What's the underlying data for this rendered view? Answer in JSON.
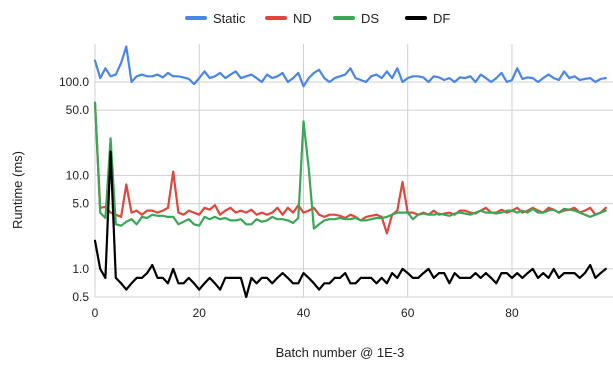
{
  "chart_data": {
    "type": "line",
    "title": "",
    "xlabel": "Batch number @ 1E-3",
    "ylabel": "Runtime (ms)",
    "y_scale": "log",
    "ylim": [
      0.5,
      200
    ],
    "xlim": [
      0,
      99
    ],
    "y_ticks": [
      {
        "value": 0.5,
        "label": "0.5"
      },
      {
        "value": 1.0,
        "label": "1.0"
      },
      {
        "value": 5.0,
        "label": "5.0"
      },
      {
        "value": 10.0,
        "label": "10.0"
      },
      {
        "value": 50.0,
        "label": "50.0"
      },
      {
        "value": 100.0,
        "label": "100.0"
      }
    ],
    "x_ticks": [
      {
        "value": 0,
        "label": "0"
      },
      {
        "value": 20,
        "label": "20"
      },
      {
        "value": 40,
        "label": "40"
      },
      {
        "value": 60,
        "label": "60"
      },
      {
        "value": 80,
        "label": "80"
      }
    ],
    "grid": true,
    "legend_position": "top",
    "series": [
      {
        "name": "Static",
        "color": "#4a86e8",
        "values": [
          170,
          110,
          140,
          115,
          120,
          160,
          240,
          100,
          115,
          120,
          115,
          115,
          120,
          112,
          125,
          115,
          115,
          112,
          108,
          95,
          110,
          130,
          110,
          115,
          125,
          110,
          120,
          130,
          110,
          115,
          120,
          110,
          100,
          120,
          110,
          115,
          125,
          100,
          110,
          125,
          90,
          110,
          125,
          135,
          110,
          100,
          110,
          115,
          120,
          140,
          110,
          105,
          100,
          115,
          120,
          110,
          130,
          110,
          140,
          100,
          110,
          115,
          115,
          112,
          100,
          115,
          112,
          105,
          110,
          100,
          112,
          110,
          115,
          100,
          120,
          110,
          100,
          110,
          125,
          100,
          105,
          140,
          108,
          112,
          110,
          100,
          110,
          120,
          110,
          105,
          130,
          110,
          115,
          105,
          108,
          110,
          100,
          108,
          110
        ]
      },
      {
        "name": "ND",
        "color": "#e0463c",
        "values": [
          60,
          4.5,
          4.6,
          4.0,
          3.8,
          3.6,
          8.0,
          4.0,
          4.2,
          3.8,
          4.2,
          4.2,
          4.0,
          4.2,
          4.5,
          11.0,
          4.0,
          3.8,
          4.2,
          4.0,
          3.8,
          4.5,
          4.3,
          4.8,
          3.8,
          4.2,
          4.5,
          4.0,
          4.2,
          4.0,
          4.3,
          3.8,
          4.0,
          3.8,
          4.0,
          4.5,
          3.8,
          4.5,
          4.0,
          4.8,
          4.0,
          4.2,
          4.5,
          3.8,
          3.6,
          3.8,
          3.8,
          3.7,
          3.5,
          3.8,
          3.6,
          3.3,
          3.6,
          3.7,
          3.8,
          3.6,
          2.4,
          3.8,
          4.2,
          8.5,
          4.0,
          4.0,
          3.8,
          4.0,
          3.8,
          4.2,
          3.8,
          3.9,
          4.0,
          3.8,
          4.2,
          4.2,
          4.0,
          3.9,
          4.2,
          4.5,
          4.0,
          4.0,
          4.3,
          4.0,
          4.2,
          4.5,
          4.0,
          4.2,
          4.5,
          4.2,
          4.0,
          4.5,
          4.3,
          4.0,
          4.2,
          4.3,
          4.5,
          4.0,
          4.2,
          4.5,
          3.8,
          4.0,
          4.5
        ]
      },
      {
        "name": "DS",
        "color": "#3aa757",
        "values": [
          60,
          4.0,
          3.5,
          25.0,
          3.0,
          2.9,
          3.2,
          3.4,
          3.0,
          3.6,
          3.5,
          3.8,
          3.7,
          3.7,
          3.6,
          3.6,
          3.0,
          3.2,
          3.4,
          3.0,
          2.9,
          3.6,
          3.4,
          3.6,
          3.4,
          3.5,
          3.3,
          3.3,
          3.4,
          3.0,
          3.0,
          3.4,
          3.2,
          3.3,
          3.6,
          3.4,
          3.4,
          3.3,
          3.1,
          3.5,
          38.0,
          12.0,
          2.7,
          3.0,
          3.3,
          3.4,
          3.4,
          3.5,
          3.4,
          3.4,
          3.5,
          3.3,
          3.3,
          3.4,
          3.5,
          3.5,
          3.6,
          3.8,
          4.0,
          4.0,
          4.0,
          3.4,
          3.8,
          3.9,
          3.8,
          3.8,
          3.9,
          3.8,
          3.7,
          3.9,
          4.0,
          3.9,
          3.8,
          4.0,
          4.2,
          4.0,
          4.0,
          3.9,
          4.0,
          4.2,
          4.2,
          4.0,
          4.2,
          4.0,
          4.4,
          4.0,
          4.0,
          4.2,
          4.3,
          4.0,
          4.4,
          4.3,
          4.2,
          4.0,
          3.8,
          3.6,
          3.8,
          4.0,
          4.2
        ]
      },
      {
        "name": "DF",
        "color": "#000000",
        "values": [
          2.0,
          1.0,
          0.8,
          18.0,
          0.8,
          0.7,
          0.6,
          0.7,
          0.8,
          0.8,
          0.9,
          1.1,
          0.8,
          0.8,
          0.7,
          1.0,
          0.7,
          0.7,
          0.8,
          0.7,
          0.6,
          0.7,
          0.8,
          0.7,
          0.6,
          0.8,
          0.8,
          0.8,
          0.8,
          0.5,
          0.8,
          0.7,
          0.8,
          0.8,
          0.7,
          0.8,
          0.9,
          0.8,
          0.7,
          0.7,
          0.9,
          0.8,
          0.7,
          0.6,
          0.7,
          0.7,
          0.8,
          0.8,
          0.9,
          0.7,
          0.7,
          0.8,
          0.8,
          0.8,
          0.7,
          0.8,
          0.7,
          0.9,
          0.8,
          1.0,
          0.9,
          0.8,
          0.8,
          0.9,
          1.0,
          0.8,
          0.9,
          0.9,
          0.7,
          0.9,
          0.8,
          0.8,
          0.8,
          0.9,
          0.8,
          0.9,
          0.8,
          0.7,
          0.9,
          0.9,
          0.8,
          0.9,
          0.8,
          0.9,
          1.0,
          0.8,
          0.9,
          0.8,
          1.0,
          0.8,
          0.9,
          0.9,
          0.9,
          0.8,
          0.9,
          1.1,
          0.8,
          0.9,
          1.0
        ]
      }
    ]
  }
}
